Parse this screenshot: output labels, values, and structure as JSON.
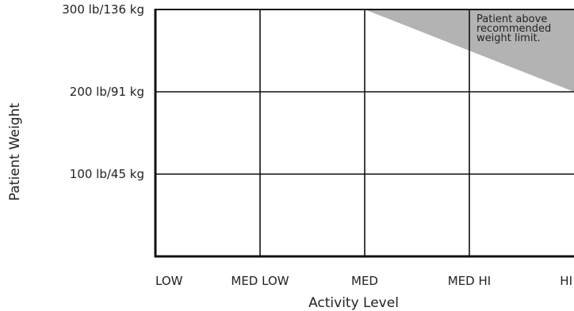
{
  "chart_data": {
    "type": "area",
    "xlabel": "Activity Level",
    "ylabel": "Patient Weight",
    "categories": [
      "LOW",
      "MED LOW",
      "MED",
      "MED HI",
      "HI"
    ],
    "y_ticks": [
      {
        "value": 100,
        "label": "100 lb/45 kg"
      },
      {
        "value": 200,
        "label": "200 lb/91 kg"
      },
      {
        "value": 300,
        "label": "300 lb/136 kg"
      }
    ],
    "ylim": [
      0,
      300
    ],
    "grid": true,
    "shaded_region": {
      "color": "#b3b3b3",
      "boundary": [
        {
          "category": "MED",
          "weight": 300
        },
        {
          "category": "HI",
          "weight": 200
        }
      ],
      "label_lines": [
        "Patient above",
        "recommended",
        "weight limit."
      ]
    }
  }
}
